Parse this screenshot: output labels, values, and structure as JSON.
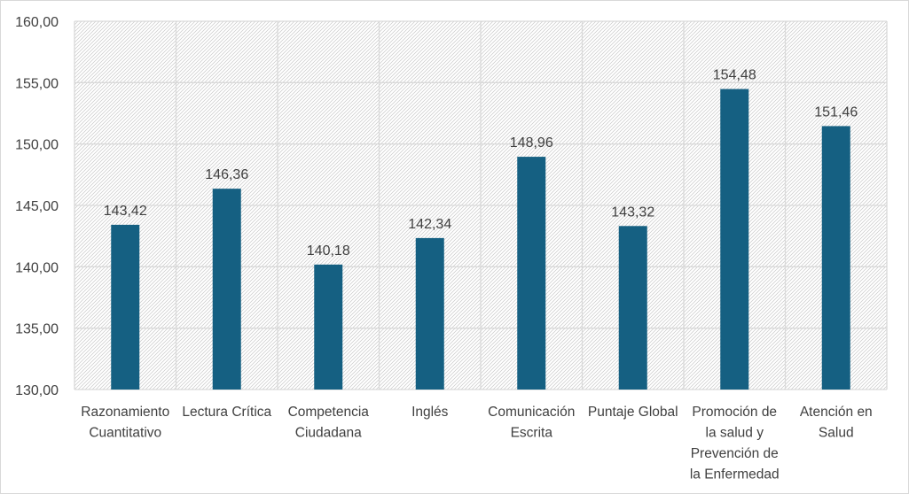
{
  "chart_data": {
    "type": "bar",
    "categories": [
      [
        "Razonamiento",
        "Cuantitativo"
      ],
      [
        "Lectura Crítica"
      ],
      [
        "Competencia",
        "Ciudadana"
      ],
      [
        "Inglés"
      ],
      [
        "Comunicación",
        "Escrita"
      ],
      [
        "Puntaje Global"
      ],
      [
        "Promoción de",
        "la salud y",
        "Prevención de",
        "la Enfermedad"
      ],
      [
        "Atención en",
        "Salud"
      ]
    ],
    "values": [
      143.42,
      146.36,
      140.18,
      142.34,
      148.96,
      143.32,
      154.48,
      151.46
    ],
    "data_labels": [
      "143,42",
      "146,36",
      "140,18",
      "142,34",
      "148,96",
      "143,32",
      "154,48",
      "151,46"
    ],
    "y_ticks": [
      "130,00",
      "135,00",
      "140,00",
      "145,00",
      "150,00",
      "155,00",
      "160,00"
    ],
    "ylim": [
      130,
      160
    ],
    "y_step": 5,
    "grid": true,
    "bar_color": "#156082",
    "grid_color": "#d9d9d9",
    "pattern_color": "#c8c8c8"
  }
}
